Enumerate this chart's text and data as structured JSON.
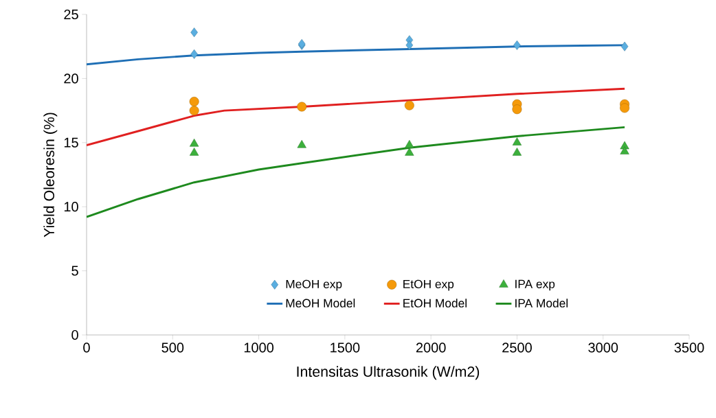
{
  "chart_data": {
    "type": "scatter",
    "xlabel": "Intensitas Ultrasonik (W/m2)",
    "ylabel": "Yield Oleoresin (%)",
    "xlim": [
      0,
      3500
    ],
    "ylim": [
      0,
      25
    ],
    "xticks": [
      0,
      500,
      1000,
      1500,
      2000,
      2500,
      3000,
      3500
    ],
    "yticks": [
      0,
      5,
      10,
      15,
      20,
      25
    ],
    "grid": false,
    "legend": "bottom",
    "series": [
      {
        "name": "MeOH exp",
        "marker": "diamond",
        "color": "#5aaee0",
        "x": [
          625,
          625,
          1250,
          1250,
          1875,
          1875,
          2500,
          3125
        ],
        "values": [
          23.6,
          21.9,
          22.6,
          22.7,
          23.0,
          22.6,
          22.6,
          22.5
        ]
      },
      {
        "name": "EtOH exp",
        "marker": "circle",
        "color": "#f59a0a",
        "x": [
          625,
          625,
          1250,
          1875,
          2500,
          2500,
          3125,
          3125
        ],
        "values": [
          18.2,
          17.5,
          17.8,
          17.9,
          18.0,
          17.6,
          18.0,
          17.7
        ]
      },
      {
        "name": "IPA exp",
        "marker": "triangle",
        "color": "#3cb03c",
        "x": [
          625,
          625,
          1250,
          1875,
          1875,
          2500,
          2500,
          3125,
          3125
        ],
        "values": [
          14.9,
          14.2,
          14.8,
          14.8,
          14.2,
          15.0,
          14.2,
          14.7,
          14.3
        ]
      },
      {
        "name": "MeOH Model",
        "type": "line",
        "marker": "none",
        "color": "#1f6fb5",
        "x": [
          0,
          300,
          625,
          1000,
          1250,
          1875,
          2500,
          3125
        ],
        "values": [
          21.1,
          21.5,
          21.8,
          22.0,
          22.1,
          22.3,
          22.5,
          22.6
        ]
      },
      {
        "name": "EtOH Model",
        "type": "line",
        "marker": "none",
        "color": "#e02020",
        "x": [
          0,
          300,
          625,
          800,
          1250,
          1875,
          2500,
          3125
        ],
        "values": [
          14.8,
          15.9,
          17.1,
          17.5,
          17.8,
          18.3,
          18.8,
          19.2
        ]
      },
      {
        "name": "IPA Model",
        "type": "line",
        "marker": "none",
        "color": "#1e8a1e",
        "x": [
          0,
          300,
          625,
          1000,
          1250,
          1875,
          2500,
          3125
        ],
        "values": [
          9.2,
          10.6,
          11.9,
          12.9,
          13.4,
          14.6,
          15.5,
          16.2
        ]
      }
    ]
  }
}
